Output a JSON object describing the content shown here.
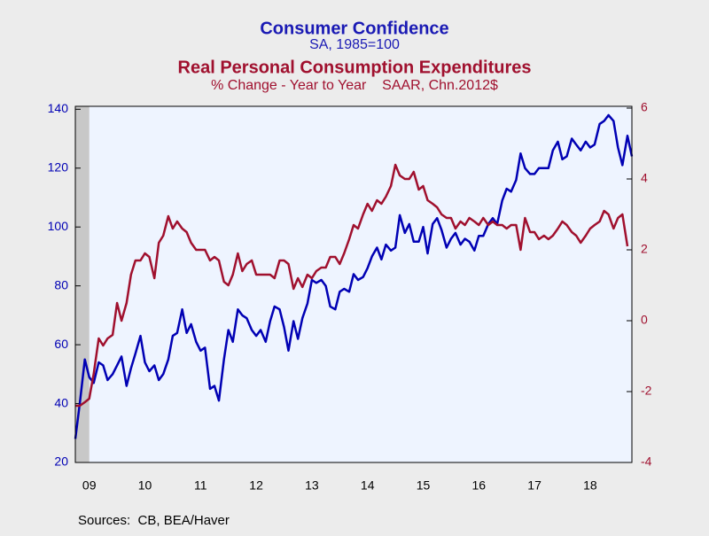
{
  "chart_data": {
    "type": "line",
    "title": "Consumer Confidence",
    "subtitle": "SA, 1985=100",
    "title2": "Real Personal Consumption Expenditures",
    "subtitle2": "% Change - Year to Year    SAAR, Chn.2012$",
    "source": "Sources:  CB, BEA/Haver",
    "x": [
      2009.25,
      2009.33,
      2009.42,
      2009.5,
      2009.58,
      2009.67,
      2009.75,
      2009.83,
      2009.92,
      2010,
      2010.08,
      2010.17,
      2010.25,
      2010.33,
      2010.42,
      2010.5,
      2010.58,
      2010.67,
      2010.75,
      2010.83,
      2010.92,
      2011,
      2011.08,
      2011.17,
      2011.25,
      2011.33,
      2011.42,
      2011.5,
      2011.58,
      2011.67,
      2011.75,
      2011.83,
      2011.92,
      2012,
      2012.08,
      2012.17,
      2012.25,
      2012.33,
      2012.42,
      2012.5,
      2012.58,
      2012.67,
      2012.75,
      2012.83,
      2012.92,
      2013,
      2013.08,
      2013.17,
      2013.25,
      2013.33,
      2013.42,
      2013.5,
      2013.58,
      2013.67,
      2013.75,
      2013.83,
      2013.92,
      2014,
      2014.08,
      2014.17,
      2014.25,
      2014.33,
      2014.42,
      2014.5,
      2014.58,
      2014.67,
      2014.75,
      2014.83,
      2014.92,
      2015,
      2015.08,
      2015.17,
      2015.25,
      2015.33,
      2015.42,
      2015.5,
      2015.58,
      2015.67,
      2015.75,
      2015.83,
      2015.92,
      2016,
      2016.08,
      2016.17,
      2016.25,
      2016.33,
      2016.42,
      2016.5,
      2016.58,
      2016.67,
      2016.75,
      2016.83,
      2016.92,
      2017,
      2017.08,
      2017.17,
      2017.25,
      2017.33,
      2017.42,
      2017.5,
      2017.58,
      2017.67,
      2017.75,
      2017.83,
      2017.92,
      2018,
      2018.08,
      2018.17,
      2018.25,
      2018.33,
      2018.42,
      2018.5,
      2018.58,
      2018.67,
      2018.75,
      2018.83,
      2018.92,
      2019,
      2019.08,
      2019.17,
      2019.25
    ],
    "series": [
      {
        "name": "Consumer Confidence",
        "color": "#0000b4",
        "axis": "y",
        "values": [
          28,
          40,
          55,
          49,
          47,
          54,
          53,
          48,
          50,
          53,
          56,
          46,
          52,
          57,
          63,
          54,
          51,
          53,
          48,
          50,
          55,
          63,
          64,
          72,
          64,
          67,
          61,
          58,
          59,
          45,
          46,
          41,
          55,
          65,
          61,
          72,
          70,
          69,
          65,
          63,
          65,
          61,
          68,
          73,
          72,
          66,
          58,
          68,
          62,
          69,
          74,
          82,
          81,
          82,
          80,
          73,
          72,
          78,
          79,
          78,
          84,
          82,
          83,
          86,
          90,
          93,
          89,
          94,
          92,
          93,
          104,
          98,
          101,
          95,
          95,
          100,
          91,
          101,
          103,
          99,
          93,
          96,
          98,
          94,
          96,
          95,
          92,
          97,
          97,
          101,
          103,
          101,
          109,
          113,
          112,
          116,
          125,
          120,
          118,
          118,
          120,
          120,
          120,
          126,
          129,
          123,
          124,
          130,
          128,
          126,
          129,
          127,
          128,
          135,
          136,
          138,
          136,
          127,
          121,
          131,
          124
        ]
      },
      {
        "name": "Real Personal Consumption Expenditures",
        "color": "#a0102e",
        "axis": "y2",
        "values": [
          -2.4,
          -2.4,
          -2.3,
          -2.2,
          -1.5,
          -0.5,
          -0.7,
          -0.5,
          -0.4,
          0.5,
          0.0,
          0.5,
          1.3,
          1.7,
          1.7,
          1.9,
          1.8,
          1.2,
          2.2,
          2.4,
          2.95,
          2.6,
          2.8,
          2.6,
          2.5,
          2.2,
          2.0,
          2.0,
          2.0,
          1.7,
          1.8,
          1.7,
          1.1,
          1.0,
          1.3,
          1.9,
          1.4,
          1.6,
          1.7,
          1.3,
          1.3,
          1.3,
          1.3,
          1.2,
          1.7,
          1.7,
          1.6,
          0.9,
          1.2,
          0.95,
          1.3,
          1.2,
          1.4,
          1.5,
          1.5,
          1.8,
          1.8,
          1.6,
          1.9,
          2.3,
          2.7,
          2.6,
          3.0,
          3.3,
          3.1,
          3.4,
          3.3,
          3.5,
          3.8,
          4.4,
          4.1,
          4.0,
          4.0,
          4.2,
          3.7,
          3.8,
          3.4,
          3.3,
          3.2,
          3.0,
          2.9,
          2.9,
          2.6,
          2.8,
          2.7,
          2.9,
          2.8,
          2.7,
          2.9,
          2.7,
          2.8,
          2.7,
          2.7,
          2.6,
          2.7,
          2.7,
          2.0,
          2.9,
          2.5,
          2.5,
          2.3,
          2.4,
          2.3,
          2.4,
          2.6,
          2.8,
          2.7,
          2.5,
          2.4,
          2.2,
          2.4,
          2.6,
          2.7,
          2.8,
          3.1,
          3.0,
          2.6,
          2.9,
          3.0,
          2.1,
          null
        ]
      }
    ],
    "xlim": [
      2009.25,
      2019.25
    ],
    "xticks": [
      {
        "value": 2009.5,
        "label": "09"
      },
      {
        "value": 2010.5,
        "label": "10"
      },
      {
        "value": 2011.5,
        "label": "11"
      },
      {
        "value": 2012.5,
        "label": "12"
      },
      {
        "value": 2013.5,
        "label": "13"
      },
      {
        "value": 2014.5,
        "label": "14"
      },
      {
        "value": 2015.5,
        "label": "15"
      },
      {
        "value": 2016.5,
        "label": "16"
      },
      {
        "value": 2017.5,
        "label": "17"
      },
      {
        "value": 2018.5,
        "label": "18"
      }
    ],
    "ylim": [
      20,
      141
    ],
    "yticks": [
      20,
      40,
      60,
      80,
      100,
      120,
      140
    ],
    "y2lim": [
      -4,
      6.05
    ],
    "y2ticks": [
      -4,
      -2,
      0,
      2,
      4,
      6
    ],
    "shade_x": [
      2009.25,
      2009.5
    ]
  }
}
